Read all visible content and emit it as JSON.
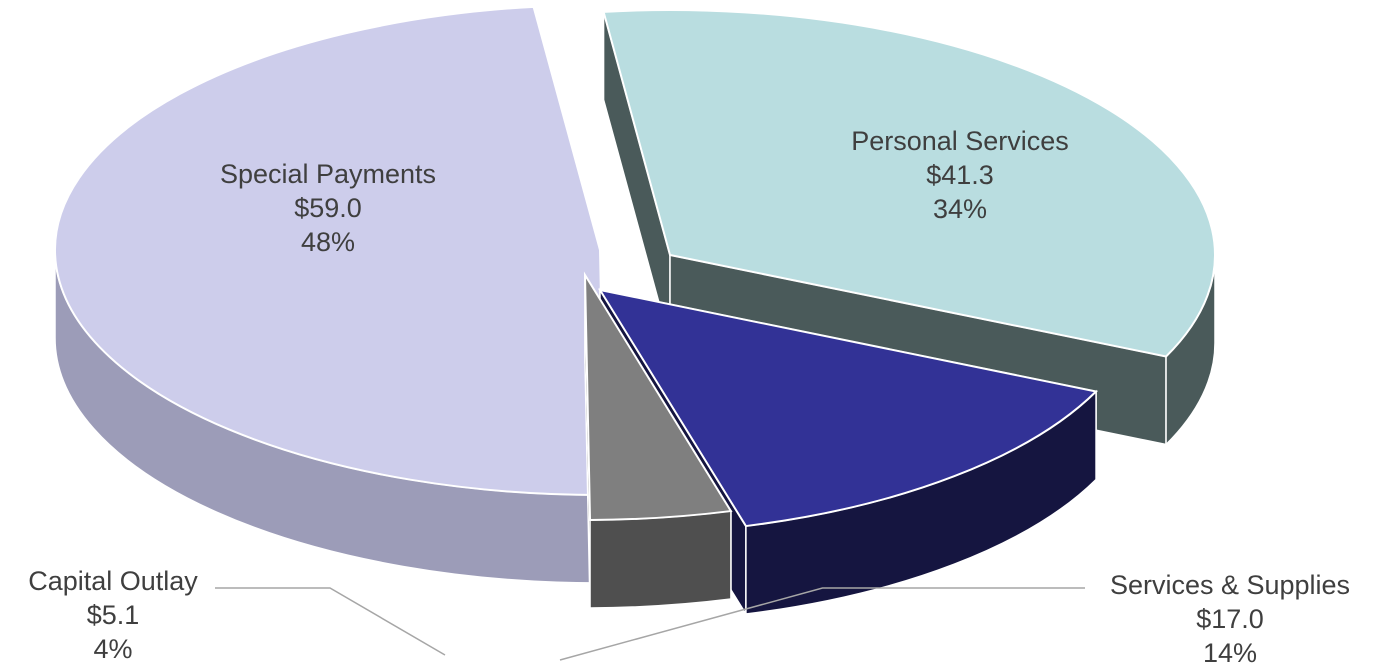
{
  "chart_data": {
    "type": "pie",
    "style": "3d-exploded",
    "title": "",
    "currency_unit": "$",
    "slices": [
      {
        "name": "Personal Services",
        "value": 41.3,
        "value_label": "$41.3",
        "percent": 34,
        "percent_label": "34%",
        "color": "#B9DDE0",
        "side_color": "#4A5A5A"
      },
      {
        "name": "Services & Supplies",
        "value": 17.0,
        "value_label": "$17.0",
        "percent": 14,
        "percent_label": "14%",
        "color": "#323296",
        "side_color": "#151540"
      },
      {
        "name": "Capital Outlay",
        "value": 5.1,
        "value_label": "$5.1",
        "percent": 4,
        "percent_label": "4%",
        "color": "#7F7F7F",
        "side_color": "#4F4F4F"
      },
      {
        "name": "Special Payments",
        "value": 59.0,
        "value_label": "$59.0",
        "percent": 48,
        "percent_label": "48%",
        "color": "#CDCDEB",
        "side_color": "#9C9CB8"
      }
    ]
  }
}
